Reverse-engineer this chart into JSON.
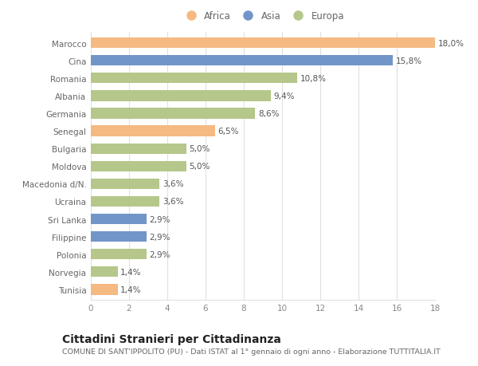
{
  "categories": [
    "Marocco",
    "Cina",
    "Romania",
    "Albania",
    "Germania",
    "Senegal",
    "Bulgaria",
    "Moldova",
    "Macedonia d/N.",
    "Ucraina",
    "Sri Lanka",
    "Filippine",
    "Polonia",
    "Norvegia",
    "Tunisia"
  ],
  "values": [
    18.0,
    15.8,
    10.8,
    9.4,
    8.6,
    6.5,
    5.0,
    5.0,
    3.6,
    3.6,
    2.9,
    2.9,
    2.9,
    1.4,
    1.4
  ],
  "continents": [
    "Africa",
    "Asia",
    "Europa",
    "Europa",
    "Europa",
    "Africa",
    "Europa",
    "Europa",
    "Europa",
    "Europa",
    "Asia",
    "Asia",
    "Europa",
    "Europa",
    "Africa"
  ],
  "colors": {
    "Africa": "#f5b982",
    "Asia": "#7295c8",
    "Europa": "#b5c78a"
  },
  "xlim": [
    0,
    18
  ],
  "xticks": [
    0,
    2,
    4,
    6,
    8,
    10,
    12,
    14,
    16,
    18
  ],
  "title": "Cittadini Stranieri per Cittadinanza",
  "subtitle": "COMUNE DI SANT'IPPOLITO (PU) - Dati ISTAT al 1° gennaio di ogni anno - Elaborazione TUTTITALIA.IT",
  "background_color": "#ffffff",
  "plot_bg_color": "#ffffff",
  "grid_color": "#e0e0e0",
  "label_fontsize": 7.5,
  "ytick_fontsize": 7.5,
  "xtick_fontsize": 7.5,
  "title_fontsize": 10,
  "subtitle_fontsize": 6.8,
  "bar_height": 0.6
}
